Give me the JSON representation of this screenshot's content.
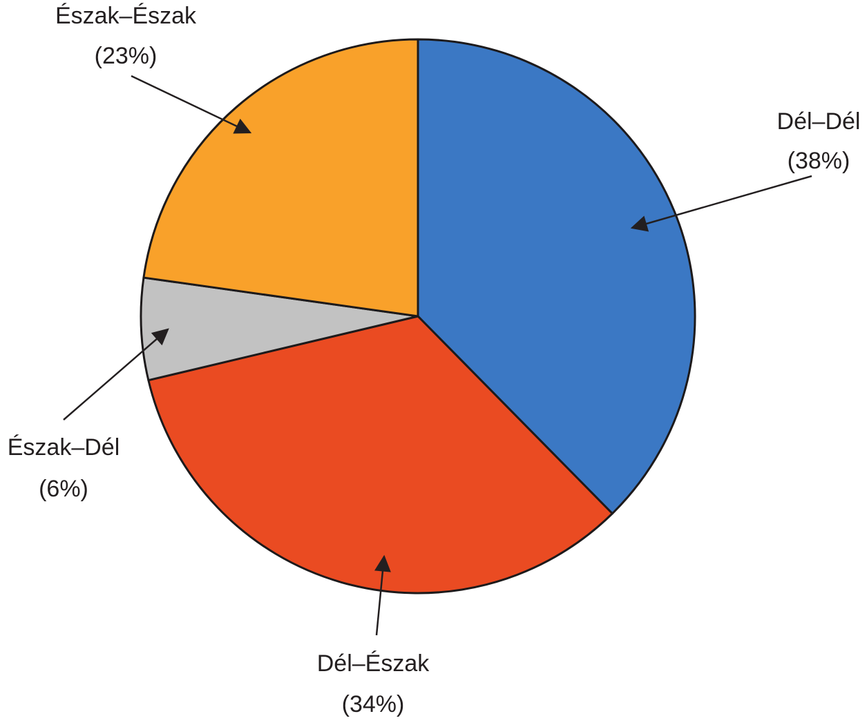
{
  "chart_data": {
    "type": "pie",
    "categories": [
      "Dél–Dél",
      "Dél–Észak",
      "Észak–Dél",
      "Észak–Észak"
    ],
    "values": [
      38,
      34,
      6,
      23
    ],
    "value_labels": [
      "(38%)",
      "(34%)",
      "(6%)",
      "(23%)"
    ],
    "colors": [
      "#3b78c4",
      "#ea4b22",
      "#c2c2c2",
      "#f9a12a"
    ]
  }
}
